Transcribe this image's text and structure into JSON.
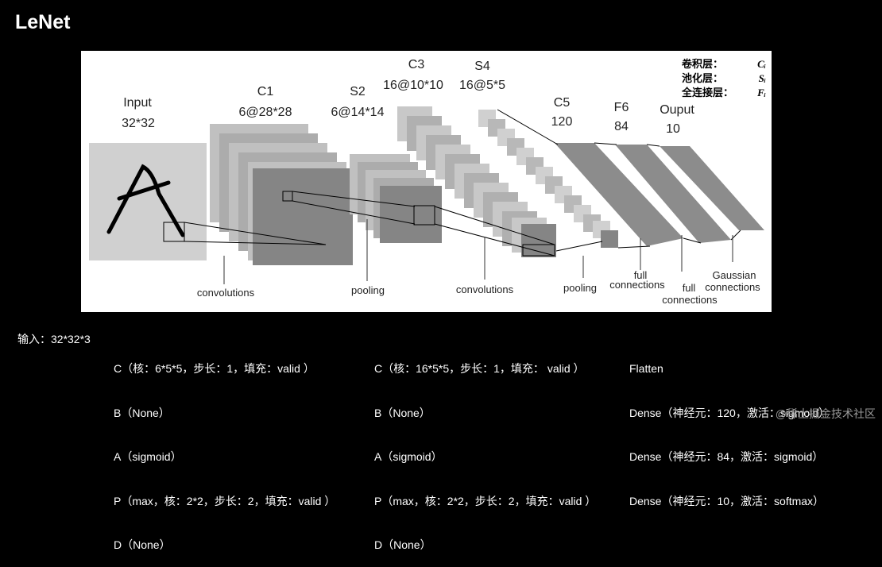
{
  "page": {
    "title": "LeNet"
  },
  "diagram": {
    "stages": [
      {
        "name": "Input",
        "size": "32*32"
      },
      {
        "name": "C1",
        "size": "6@28*28"
      },
      {
        "name": "S2",
        "size": "6@14*14"
      },
      {
        "name": "C3",
        "size": "16@10*10"
      },
      {
        "name": "S4",
        "size": "16@5*5"
      },
      {
        "name": "C5",
        "size": "120"
      },
      {
        "name": "F6",
        "size": "84"
      },
      {
        "name": "Ouput",
        "size": "10"
      }
    ],
    "ops": {
      "conv1": "convolutions",
      "pool1": "pooling",
      "conv2": "convolutions",
      "pool2": "pooling",
      "full1_line1": "full",
      "full1_line2": "connections",
      "full2_line1": "full",
      "full2_line2": "connections",
      "gauss_line1": "Gaussian",
      "gauss_line2": "connections"
    },
    "legend": [
      {
        "label": "卷积层：",
        "symbol": "Cᵢ"
      },
      {
        "label": "池化层：",
        "symbol": "Sᵢ"
      },
      {
        "label": "全连接层：",
        "symbol": "Fᵢ"
      }
    ]
  },
  "notes": {
    "input": "输入：32*32*3",
    "block1": [
      "C（核：6*5*5，步长：1，填充：valid ）",
      "B（None）",
      "A（sigmoid）",
      "P（max，核：2*2，步长：2，填充：valid ）",
      "D（None）"
    ],
    "block2": [
      "C（核：16*5*5，步长：1，填充： valid ）",
      "B（None）",
      "A（sigmoid）",
      "P（max，核：2*2，步长：2，填充：valid ）",
      "D（None）"
    ],
    "block3": [
      "Flatten",
      "Dense（神经元：120，激活：sigmoid）",
      "Dense（神经元：84，激活：sigmoid）",
      "Dense（神经元：10，激活：softmax）"
    ]
  },
  "watermark": "@稀土掘金技术社区"
}
